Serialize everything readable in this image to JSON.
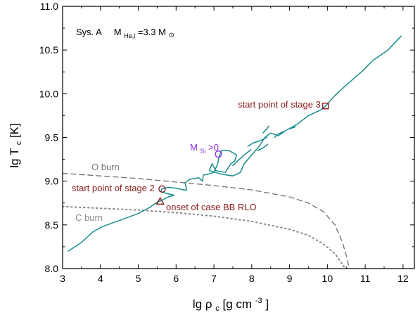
{
  "chart_data": {
    "type": "line",
    "xlabel": {
      "main": "lg ρ",
      "sub": "c",
      "rest": " [g cm",
      "sup": "-3",
      "end": "]"
    },
    "ylabel": {
      "main": "lg T",
      "sub": "c",
      "rest": " [K]"
    },
    "xlim": [
      3,
      12.3
    ],
    "ylim": [
      8.0,
      11.0
    ],
    "xticks": [
      3,
      4,
      5,
      6,
      7,
      8,
      9,
      10,
      11,
      12
    ],
    "yticks": [
      8.0,
      8.5,
      9.0,
      9.5,
      10.0,
      10.5,
      11.0
    ],
    "grid": false,
    "header": {
      "system": "Sys. A",
      "mass_main": "M",
      "mass_sub": "He,i",
      "mass_eq": "=3.3 M",
      "sun_symbol": "⊙"
    },
    "series": [
      {
        "color": "#1a8c8c",
        "points": [
          [
            3.15,
            8.2
          ],
          [
            3.5,
            8.3
          ],
          [
            3.8,
            8.42
          ],
          [
            4.05,
            8.48
          ],
          [
            4.5,
            8.55
          ],
          [
            5.0,
            8.63
          ],
          [
            5.3,
            8.7
          ],
          [
            5.5,
            8.76
          ],
          [
            5.62,
            8.78
          ],
          [
            5.8,
            8.82
          ],
          [
            5.95,
            8.84
          ],
          [
            5.75,
            8.86
          ],
          [
            5.6,
            8.88
          ],
          [
            5.62,
            8.91
          ],
          [
            5.8,
            8.93
          ],
          [
            6.0,
            8.92
          ],
          [
            6.2,
            8.9
          ],
          [
            6.28,
            8.9
          ],
          [
            6.24,
            8.98
          ],
          [
            6.35,
            9.02
          ],
          [
            6.6,
            9.04
          ],
          [
            6.7,
            9.0
          ],
          [
            6.72,
            9.07
          ],
          [
            6.85,
            9.08
          ],
          [
            7.0,
            9.1
          ],
          [
            7.1,
            9.2
          ],
          [
            7.15,
            9.3
          ],
          [
            7.2,
            9.35
          ],
          [
            7.4,
            9.35
          ],
          [
            7.6,
            9.3
          ],
          [
            7.55,
            9.23
          ],
          [
            7.45,
            9.2
          ],
          [
            7.3,
            9.1
          ],
          [
            7.05,
            9.12
          ],
          [
            6.95,
            9.2
          ],
          [
            6.88,
            9.12
          ],
          [
            7.2,
            9.08
          ],
          [
            7.5,
            9.06
          ],
          [
            7.7,
            9.1
          ],
          [
            7.8,
            9.2
          ],
          [
            8.0,
            9.3
          ],
          [
            8.2,
            9.4
          ],
          [
            8.35,
            9.5
          ],
          [
            8.5,
            9.55
          ],
          [
            8.7,
            9.52
          ],
          [
            8.9,
            9.58
          ],
          [
            9.2,
            9.65
          ],
          [
            9.5,
            9.75
          ],
          [
            9.85,
            9.82
          ],
          [
            9.95,
            9.86
          ],
          [
            10.2,
            9.98
          ],
          [
            10.5,
            10.1
          ],
          [
            10.9,
            10.25
          ],
          [
            11.2,
            10.38
          ],
          [
            11.6,
            10.5
          ],
          [
            11.95,
            10.66
          ]
        ]
      },
      {
        "color": "#1a8c8c",
        "points": [
          [
            7.5,
            9.18
          ],
          [
            7.65,
            9.24
          ],
          [
            7.8,
            9.3
          ],
          [
            7.98,
            9.36
          ]
        ]
      },
      {
        "color": "#1a8c8c",
        "points": [
          [
            7.9,
            9.4
          ],
          [
            8.05,
            9.44
          ],
          [
            8.2,
            9.46
          ],
          [
            8.4,
            9.5
          ]
        ]
      },
      {
        "color": "#1a8c8c",
        "points": [
          [
            8.3,
            9.55
          ],
          [
            8.4,
            9.6
          ],
          [
            8.45,
            9.63
          ]
        ]
      },
      {
        "color": "#1a8c8c",
        "points": [
          [
            8.6,
            9.5
          ],
          [
            8.7,
            9.54
          ],
          [
            8.85,
            9.57
          ]
        ]
      },
      {
        "color": "#1a8c8c",
        "points": [
          [
            9.0,
            9.6
          ],
          [
            9.15,
            9.62
          ]
        ]
      },
      {
        "color": "#1a8c8c",
        "points": [
          [
            8.15,
            9.35
          ],
          [
            8.3,
            9.38
          ],
          [
            8.42,
            9.42
          ]
        ]
      }
    ],
    "reference_lines": [
      {
        "label": "O burn",
        "style": "dashed",
        "color": "#777777",
        "points": [
          [
            3.0,
            9.09
          ],
          [
            4.0,
            9.06
          ],
          [
            5.0,
            9.03
          ],
          [
            6.0,
            8.99
          ],
          [
            7.0,
            8.95
          ],
          [
            8.0,
            8.9
          ],
          [
            9.0,
            8.82
          ],
          [
            9.5,
            8.75
          ],
          [
            9.9,
            8.65
          ],
          [
            10.2,
            8.5
          ],
          [
            10.4,
            8.3
          ],
          [
            10.5,
            8.15
          ],
          [
            10.58,
            8.0
          ]
        ]
      },
      {
        "label": "C burn",
        "style": "dotted",
        "color": "#888888",
        "points": [
          [
            3.0,
            8.71
          ],
          [
            4.0,
            8.69
          ],
          [
            5.0,
            8.67
          ],
          [
            6.0,
            8.64
          ],
          [
            7.0,
            8.6
          ],
          [
            8.0,
            8.54
          ],
          [
            9.0,
            8.45
          ],
          [
            9.5,
            8.38
          ],
          [
            9.9,
            8.28
          ],
          [
            10.2,
            8.17
          ],
          [
            10.4,
            8.05
          ],
          [
            10.47,
            8.0
          ]
        ]
      }
    ],
    "markers": [
      {
        "shape": "square",
        "color": "#8b1a1a",
        "x": 9.95,
        "y": 9.86,
        "label": "start point of stage 3"
      },
      {
        "shape": "circle",
        "color": "#8b1a1a",
        "x": 5.63,
        "y": 8.91,
        "label": "start point of stage 2"
      },
      {
        "shape": "triangle",
        "color": "#8b1a1a",
        "x": 5.58,
        "y": 8.77,
        "label": "onset of case BB RLO"
      },
      {
        "shape": "circle",
        "color": "#8a2be2",
        "x": 7.12,
        "y": 9.31
      }
    ],
    "msi_label": {
      "main": "M",
      "sub": "Si",
      "rest": " >0",
      "color": "#8a2be2"
    },
    "burn_labels": [
      {
        "text": "O burn",
        "x": 4.35,
        "y": 9.14
      },
      {
        "text": "C burn",
        "x": 3.7,
        "y": 8.58
      }
    ]
  }
}
